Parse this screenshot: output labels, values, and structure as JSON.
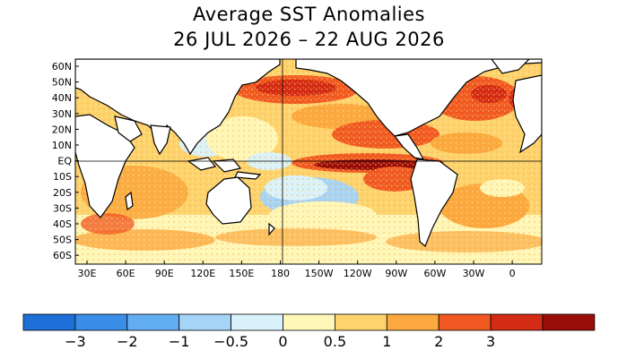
{
  "title": {
    "line1": "Average SST Anomalies",
    "line2": "26 JUL 2026 – 22 AUG 2026"
  },
  "lat_labels": [
    "60N",
    "50N",
    "40N",
    "30N",
    "20N",
    "10N",
    "EQ",
    "10S",
    "20S",
    "30S",
    "40S",
    "50S",
    "60S"
  ],
  "lon_labels": [
    "30E",
    "60E",
    "90E",
    "120E",
    "150E",
    "180",
    "150W",
    "120W",
    "90W",
    "60W",
    "30W",
    "0"
  ],
  "legend": {
    "colors": [
      "#1e6fd8",
      "#3a8ee8",
      "#63aef2",
      "#a6d4f7",
      "#d9f2fb",
      "#fff7b8",
      "#fdd36e",
      "#fba83e",
      "#f05a22",
      "#d42b14",
      "#9a0e0a"
    ],
    "labels": [
      "−3",
      "−2",
      "−1",
      "−0.5",
      "0",
      "0.5",
      "1",
      "2",
      "3"
    ]
  },
  "anomaly_colors": {
    "cool_light": "#d9f2fb",
    "cool_mid": "#a6d4f7",
    "neutral": "#fff7b8",
    "warm_light": "#fdd36e",
    "warm_mid": "#fba83e",
    "warm_strong": "#f05a22",
    "hot": "#d42b14",
    "extreme": "#9a0e0a"
  }
}
